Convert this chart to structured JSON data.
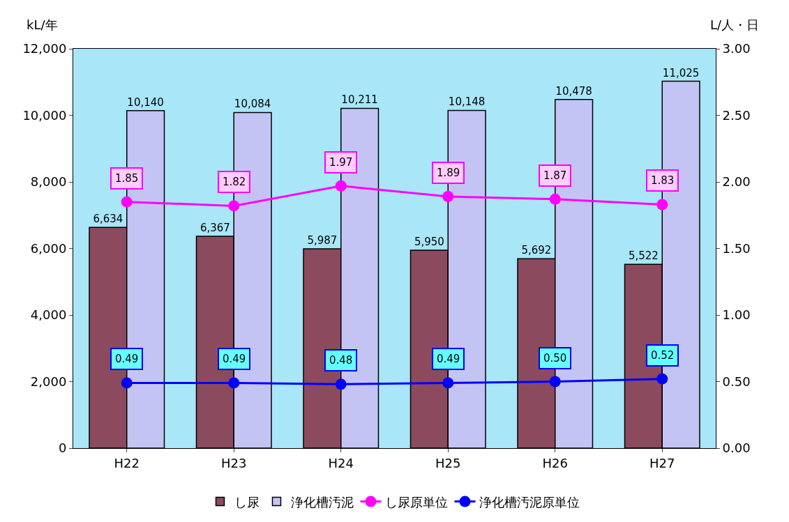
{
  "chart_data": {
    "type": "bar",
    "ylabel": "kL/年",
    "y2label": "L/人・日",
    "categories": [
      "H22",
      "H23",
      "H24",
      "H25",
      "H26",
      "H27"
    ],
    "series": [
      {
        "name": "し尿",
        "color": "#8c4a5e",
        "values": [
          6634,
          6367,
          5987,
          5950,
          5692,
          5522
        ],
        "value_labels": [
          "6,634",
          "6,367",
          "5,987",
          "5,950",
          "5,692",
          "5,522"
        ]
      },
      {
        "name": "浄化槽汚泥",
        "color": "#c4c4f4",
        "values": [
          10140,
          10084,
          10211,
          10148,
          10478,
          11025
        ],
        "value_labels": [
          "10,140",
          "10,084",
          "10,211",
          "10,148",
          "10,478",
          "11,025"
        ]
      },
      {
        "name": "し尿原単位",
        "type": "line",
        "axis": "y2",
        "color": "#ff00ff",
        "marker": "circle",
        "values": [
          1.85,
          1.82,
          1.97,
          1.89,
          1.87,
          1.83
        ],
        "value_labels": [
          "1.85",
          "1.82",
          "1.97",
          "1.89",
          "1.87",
          "1.83"
        ]
      },
      {
        "name": "浄化槽汚泥原単位",
        "type": "line",
        "axis": "y2",
        "color": "#0000ff",
        "marker": "circle",
        "values": [
          0.49,
          0.49,
          0.48,
          0.49,
          0.5,
          0.52
        ],
        "value_labels": [
          "0.49",
          "0.49",
          "0.48",
          "0.49",
          "0.50",
          "0.52"
        ]
      }
    ],
    "ylim": [
      0,
      12000
    ],
    "yticks": [
      0,
      {
        "value": 2000,
        "label": "2,000"
      },
      {
        "value": 4000,
        "label": "4,000"
      },
      {
        "value": 6000,
        "label": "6,000"
      },
      {
        "value": 8000,
        "label": "8,000"
      },
      {
        "value": 10000,
        "label": "10,000"
      },
      {
        "value": 12000,
        "label": "12,000"
      }
    ],
    "y2lim": [
      0,
      3
    ],
    "y2ticks": [
      {
        "value": 0,
        "label": "0.00"
      },
      {
        "value": 0.5,
        "label": "0.50"
      },
      {
        "value": 1,
        "label": "1.00"
      },
      {
        "value": 1.5,
        "label": "1.50"
      },
      {
        "value": 2,
        "label": "2.00"
      },
      {
        "value": 2.5,
        "label": "2.50"
      },
      {
        "value": 3,
        "label": "3.00"
      }
    ],
    "grid": false,
    "legend": "bottom"
  }
}
